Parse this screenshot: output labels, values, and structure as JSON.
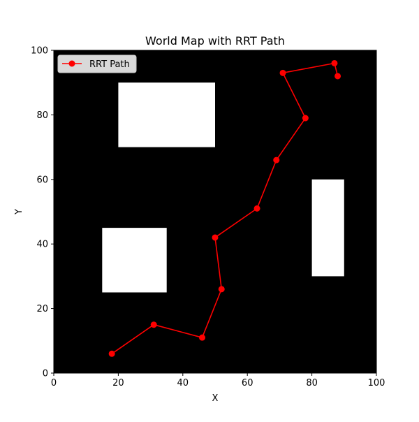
{
  "chart_data": {
    "type": "line",
    "title": "World Map with RRT Path",
    "xlabel": "X",
    "ylabel": "Y",
    "xlim": [
      0,
      100
    ],
    "ylim": [
      0,
      100
    ],
    "xticks": [
      0,
      20,
      40,
      60,
      80,
      100
    ],
    "yticks": [
      0,
      20,
      40,
      60,
      80,
      100
    ],
    "grid": false,
    "legend_position": "upper-left",
    "background_color": "#000000",
    "obstacle_color": "#ffffff",
    "obstacles": [
      {
        "x0": 20,
        "x1": 50,
        "y0": 70,
        "y1": 90
      },
      {
        "x0": 15,
        "x1": 35,
        "y0": 25,
        "y1": 45
      },
      {
        "x0": 80,
        "x1": 90,
        "y0": 30,
        "y1": 60
      }
    ],
    "series": [
      {
        "name": "RRT Path",
        "color": "#ff0000",
        "marker": "circle",
        "points": [
          {
            "x": 18,
            "y": 6
          },
          {
            "x": 31,
            "y": 15
          },
          {
            "x": 46,
            "y": 11
          },
          {
            "x": 52,
            "y": 26
          },
          {
            "x": 50,
            "y": 42
          },
          {
            "x": 63,
            "y": 51
          },
          {
            "x": 69,
            "y": 66
          },
          {
            "x": 78,
            "y": 79
          },
          {
            "x": 71,
            "y": 93
          },
          {
            "x": 87,
            "y": 96
          },
          {
            "x": 88,
            "y": 92
          }
        ]
      }
    ]
  }
}
